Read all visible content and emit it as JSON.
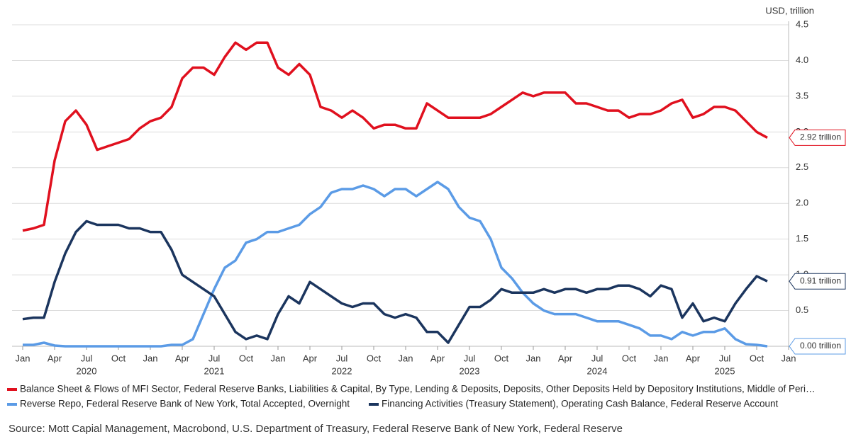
{
  "chart_data": {
    "type": "line",
    "axis_label": "USD, trillion",
    "source": "Source: Mott Capial Management, Macrobond, U.S. Department of Treasury, Federal Reserve Bank of New York, Federal Reserve",
    "x": [
      "2020-01",
      "2020-02",
      "2020-03",
      "2020-04",
      "2020-05",
      "2020-06",
      "2020-07",
      "2020-08",
      "2020-09",
      "2020-10",
      "2020-11",
      "2020-12",
      "2021-01",
      "2021-02",
      "2021-03",
      "2021-04",
      "2021-05",
      "2021-06",
      "2021-07",
      "2021-08",
      "2021-09",
      "2021-10",
      "2021-11",
      "2021-12",
      "2022-01",
      "2022-02",
      "2022-03",
      "2022-04",
      "2022-05",
      "2022-06",
      "2022-07",
      "2022-08",
      "2022-09",
      "2022-10",
      "2022-11",
      "2022-12",
      "2023-01",
      "2023-02",
      "2023-03",
      "2023-04",
      "2023-05",
      "2023-06",
      "2023-07",
      "2023-08",
      "2023-09",
      "2023-10",
      "2023-11",
      "2023-12",
      "2024-01",
      "2024-02",
      "2024-03",
      "2024-04",
      "2024-05",
      "2024-06",
      "2024-07",
      "2024-08",
      "2024-09",
      "2024-10",
      "2024-11",
      "2024-12",
      "2025-01",
      "2025-02",
      "2025-03",
      "2025-04",
      "2025-05",
      "2025-06",
      "2025-07",
      "2025-08",
      "2025-09",
      "2025-10",
      "2025-11"
    ],
    "xlim": [
      "2019-12",
      "2026-01"
    ],
    "xticks": [
      {
        "value": "2020-01",
        "label": "Jan"
      },
      {
        "value": "2020-04",
        "label": "Apr"
      },
      {
        "value": "2020-07",
        "label": "Jul"
      },
      {
        "value": "2020-10",
        "label": "Oct"
      },
      {
        "value": "2021-01",
        "label": "Jan"
      },
      {
        "value": "2021-04",
        "label": "Apr"
      },
      {
        "value": "2021-07",
        "label": "Jul"
      },
      {
        "value": "2021-10",
        "label": "Oct"
      },
      {
        "value": "2022-01",
        "label": "Jan"
      },
      {
        "value": "2022-04",
        "label": "Apr"
      },
      {
        "value": "2022-07",
        "label": "Jul"
      },
      {
        "value": "2022-10",
        "label": "Oct"
      },
      {
        "value": "2023-01",
        "label": "Jan"
      },
      {
        "value": "2023-04",
        "label": "Apr"
      },
      {
        "value": "2023-07",
        "label": "Jul"
      },
      {
        "value": "2023-10",
        "label": "Oct"
      },
      {
        "value": "2024-01",
        "label": "Jan"
      },
      {
        "value": "2024-04",
        "label": "Apr"
      },
      {
        "value": "2024-07",
        "label": "Jul"
      },
      {
        "value": "2024-10",
        "label": "Oct"
      },
      {
        "value": "2025-01",
        "label": "Jan"
      },
      {
        "value": "2025-04",
        "label": "Apr"
      },
      {
        "value": "2025-07",
        "label": "Jul"
      },
      {
        "value": "2025-10",
        "label": "Oct"
      },
      {
        "value": "2026-01",
        "label": "Jan"
      }
    ],
    "years": [
      2020,
      2021,
      2022,
      2023,
      2024,
      2025
    ],
    "ylim": [
      0,
      4.5
    ],
    "yticks": [
      {
        "value": 0,
        "label": "0.0"
      },
      0.5,
      {
        "value": 1,
        "label": "1.0"
      },
      1.5,
      {
        "value": 2,
        "label": "2.0"
      },
      2.5,
      {
        "value": 3,
        "label": "3.0"
      },
      3.5,
      {
        "value": 4,
        "label": "4.0"
      },
      4.5
    ],
    "grid": true,
    "series": [
      {
        "name": "Balance Sheet & Flows of MFI Sector, Federal Reserve Banks, Liabilities & Capital, By Type, Lending & Deposits, Deposits, Other Deposits Held by Depository Institutions, Middle of Peri…",
        "color": "#e0101e",
        "end_label": "2.92 trillion",
        "values": [
          1.62,
          1.65,
          1.7,
          2.6,
          3.15,
          3.3,
          3.1,
          2.75,
          2.8,
          2.85,
          2.9,
          3.05,
          3.15,
          3.2,
          3.35,
          3.75,
          3.9,
          3.9,
          3.8,
          4.05,
          4.25,
          4.15,
          4.25,
          4.25,
          3.9,
          3.8,
          3.95,
          3.8,
          3.35,
          3.3,
          3.2,
          3.3,
          3.2,
          3.05,
          3.1,
          3.1,
          3.05,
          3.05,
          3.4,
          3.3,
          3.2,
          3.2,
          3.2,
          3.2,
          3.25,
          3.35,
          3.45,
          3.55,
          3.5,
          3.55,
          3.55,
          3.55,
          3.4,
          3.4,
          3.35,
          3.3,
          3.3,
          3.2,
          3.25,
          3.25,
          3.3,
          3.4,
          3.45,
          3.2,
          3.25,
          3.35,
          3.35,
          3.3,
          3.15,
          3.0,
          2.92
        ]
      },
      {
        "name": "Reverse Repo, Federal Reserve Bank of New York, Total Accepted, Overnight",
        "color": "#5b9be6",
        "end_label": "0.00 trillion",
        "values": [
          0.02,
          0.02,
          0.05,
          0.01,
          0,
          0,
          0,
          0,
          0,
          0,
          0,
          0,
          0,
          0,
          0.02,
          0.02,
          0.1,
          0.45,
          0.8,
          1.1,
          1.2,
          1.45,
          1.5,
          1.6,
          1.6,
          1.65,
          1.7,
          1.85,
          1.95,
          2.15,
          2.2,
          2.2,
          2.25,
          2.2,
          2.1,
          2.2,
          2.2,
          2.1,
          2.2,
          2.3,
          2.2,
          1.95,
          1.8,
          1.75,
          1.5,
          1.1,
          0.95,
          0.75,
          0.6,
          0.5,
          0.45,
          0.45,
          0.45,
          0.4,
          0.35,
          0.35,
          0.35,
          0.3,
          0.25,
          0.15,
          0.15,
          0.1,
          0.2,
          0.15,
          0.2,
          0.2,
          0.25,
          0.1,
          0.03,
          0.02,
          0.0
        ]
      },
      {
        "name": "Financing Activities (Treasury Statement), Operating Cash Balance, Federal Reserve Account",
        "color": "#1b355e",
        "end_label": "0.91 trillion",
        "values": [
          0.38,
          0.4,
          0.4,
          0.9,
          1.3,
          1.6,
          1.75,
          1.7,
          1.7,
          1.7,
          1.65,
          1.65,
          1.6,
          1.6,
          1.35,
          1.0,
          0.9,
          0.8,
          0.7,
          0.45,
          0.2,
          0.1,
          0.15,
          0.1,
          0.45,
          0.7,
          0.6,
          0.9,
          0.8,
          0.7,
          0.6,
          0.55,
          0.6,
          0.6,
          0.45,
          0.4,
          0.45,
          0.4,
          0.2,
          0.2,
          0.05,
          0.3,
          0.55,
          0.55,
          0.65,
          0.8,
          0.75,
          0.75,
          0.75,
          0.8,
          0.75,
          0.8,
          0.8,
          0.75,
          0.8,
          0.8,
          0.85,
          0.85,
          0.8,
          0.7,
          0.85,
          0.8,
          0.4,
          0.6,
          0.35,
          0.4,
          0.35,
          0.6,
          0.8,
          0.98,
          0.91
        ]
      }
    ]
  }
}
